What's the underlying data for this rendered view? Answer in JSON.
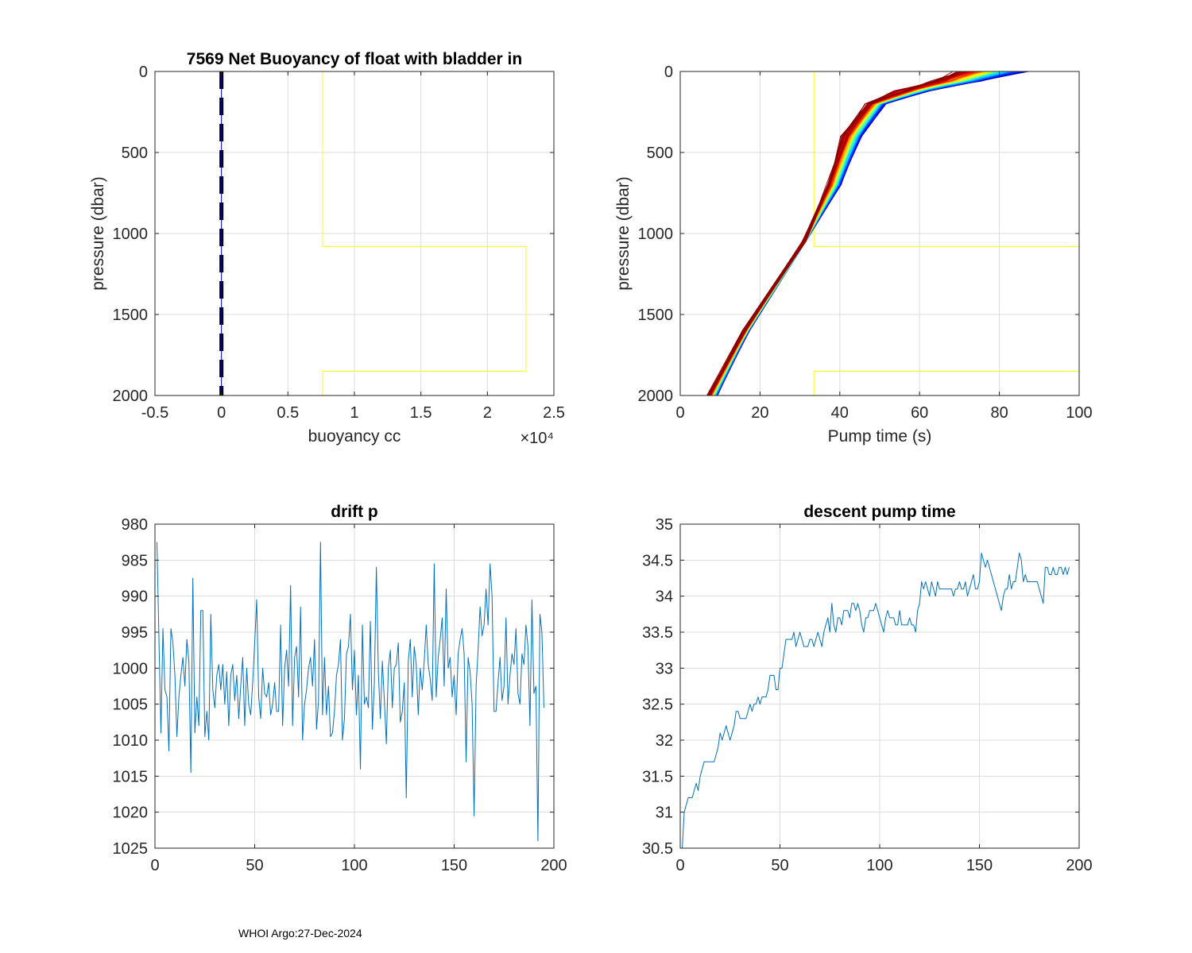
{
  "footer": "WHOI Argo:27-Dec-2024",
  "colors": {
    "grid": "#dcdcdc",
    "axis": "#262626",
    "series_blue": "#0072BD",
    "yellow": "#FFFF00",
    "black": "#000000",
    "navy": "#0000B4"
  },
  "chart_data": [
    {
      "id": "buoyancy",
      "type": "line",
      "title": "7569 Net Buoyancy of float with bladder in",
      "xlabel": "buoyancy cc",
      "ylabel": "pressure (dbar)",
      "xlim": [
        -5000,
        25000
      ],
      "ylim": [
        0,
        2000
      ],
      "y_reversed": true,
      "xticks": [
        -5000,
        0,
        5000,
        10000,
        15000,
        20000,
        25000
      ],
      "xtick_labels": [
        "-0.5",
        "0",
        "0.5",
        "1",
        "1.5",
        "2",
        "2.5"
      ],
      "yticks": [
        0,
        500,
        1000,
        1500,
        2000
      ],
      "ytick_labels": [
        "0",
        "500",
        "1000",
        "1500",
        "2000"
      ],
      "exponent": "×10⁴",
      "series": [
        {
          "name": "zero line",
          "style": "black-dashed",
          "x": [
            0,
            0
          ],
          "y": [
            0,
            2000
          ]
        },
        {
          "name": "net buoyancy",
          "style": "navy",
          "x": [
            0,
            0
          ],
          "y": [
            0,
            2000
          ]
        },
        {
          "name": "mask outline",
          "style": "yellow",
          "x": [
            7600,
            7600,
            22900,
            22900,
            7600,
            7600
          ],
          "y": [
            0,
            1080,
            1080,
            1850,
            1850,
            2000
          ]
        }
      ]
    },
    {
      "id": "pumptime",
      "type": "line",
      "title": "",
      "xlabel": "Pump time (s)",
      "ylabel": "pressure (dbar)",
      "xlim": [
        0,
        100
      ],
      "ylim": [
        0,
        2000
      ],
      "y_reversed": true,
      "xticks": [
        0,
        20,
        40,
        60,
        80,
        100
      ],
      "xtick_labels": [
        "0",
        "20",
        "40",
        "60",
        "80",
        "100"
      ],
      "yticks": [
        0,
        500,
        1000,
        1500,
        2000
      ],
      "ytick_labels": [
        "0",
        "500",
        "1000",
        "1500",
        "2000"
      ],
      "profile_count": 195,
      "colormap": "jet",
      "profile_anchor": {
        "pressure": [
          2000,
          1600,
          1050,
          700,
          400,
          200,
          120,
          60,
          0
        ]
      },
      "profile_first": {
        "pump_time": [
          9,
          17,
          31,
          40,
          45,
          51,
          61,
          74,
          86
        ]
      },
      "profile_last": {
        "pump_time": [
          7,
          16,
          31,
          37,
          41,
          47,
          55,
          64,
          70
        ]
      },
      "series": [
        {
          "name": "mask outline",
          "style": "yellow",
          "x": [
            33.5,
            33.5,
            100,
            100,
            33.5,
            33.5
          ],
          "y": [
            0,
            1080,
            1080,
            1850,
            1850,
            2000
          ]
        }
      ]
    },
    {
      "id": "driftp",
      "type": "line",
      "title": "drift p",
      "xlabel": "",
      "ylabel": "",
      "xlim": [
        0,
        200
      ],
      "ylim": [
        980,
        1025
      ],
      "y_reversed": true,
      "xticks": [
        0,
        50,
        100,
        150,
        200
      ],
      "xtick_labels": [
        "0",
        "50",
        "100",
        "150",
        "200"
      ],
      "yticks": [
        980,
        985,
        990,
        995,
        1000,
        1005,
        1010,
        1015,
        1020,
        1025
      ],
      "ytick_labels": [
        "980",
        "985",
        "990",
        "995",
        "1000",
        "1005",
        "1010",
        "1015",
        "1020",
        "1025"
      ],
      "x": [
        1,
        2,
        3,
        4,
        5,
        6,
        7,
        8,
        9,
        10,
        11,
        12,
        13,
        14,
        15,
        16,
        17,
        18,
        19,
        20,
        21,
        22,
        23,
        24,
        25,
        26,
        27,
        28,
        29,
        30,
        31,
        32,
        33,
        34,
        35,
        36,
        37,
        38,
        39,
        40,
        41,
        42,
        43,
        44,
        45,
        46,
        47,
        48,
        49,
        50,
        51,
        52,
        53,
        54,
        55,
        56,
        57,
        58,
        59,
        60,
        61,
        62,
        63,
        64,
        65,
        66,
        67,
        68,
        69,
        70,
        71,
        72,
        73,
        74,
        75,
        76,
        77,
        78,
        79,
        80,
        81,
        82,
        83,
        84,
        85,
        86,
        87,
        88,
        89,
        90,
        91,
        92,
        93,
        94,
        95,
        96,
        97,
        98,
        99,
        100,
        101,
        102,
        103,
        104,
        105,
        106,
        107,
        108,
        109,
        110,
        111,
        112,
        113,
        114,
        115,
        116,
        117,
        118,
        119,
        120,
        121,
        122,
        123,
        124,
        125,
        126,
        127,
        128,
        129,
        130,
        131,
        132,
        133,
        134,
        135,
        136,
        137,
        138,
        139,
        140,
        141,
        142,
        143,
        144,
        145,
        146,
        147,
        148,
        149,
        150,
        151,
        152,
        153,
        154,
        155,
        156,
        157,
        158,
        159,
        160,
        161,
        162,
        163,
        164,
        165,
        166,
        167,
        168,
        169,
        170,
        171,
        172,
        173,
        174,
        175,
        176,
        177,
        178,
        179,
        180,
        181,
        182,
        183,
        184,
        185,
        186,
        187,
        188,
        189,
        190,
        191,
        192,
        193,
        194,
        195
      ],
      "y": [
        982.5,
        996.0,
        1009.0,
        994.5,
        1003.0,
        1004.0,
        1011.5,
        994.5,
        996.5,
        1001.0,
        1009.5,
        1004.0,
        1001.0,
        998.5,
        1002.5,
        996.0,
        999.0,
        1014.5,
        987.5,
        1009.0,
        1004.0,
        1008.0,
        992.0,
        992.0,
        1009.5,
        1006.0,
        1010.0,
        992.5,
        1003.0,
        1005.5,
        1001.0,
        999.5,
        1003.0,
        999.5,
        1005.0,
        1000.5,
        1008.0,
        1001.0,
        999.5,
        1004.5,
        1001.0,
        1007.0,
        1002.5,
        998.5,
        1008.0,
        1000.0,
        1005.0,
        1006.5,
        1002.0,
        996.5,
        990.5,
        1004.0,
        1007.0,
        1000.0,
        1003.5,
        1004.0,
        1002.0,
        1006.5,
        1005.0,
        1002.0,
        1006.0,
        1006.0,
        994.0,
        1008.0,
        1000.0,
        997.5,
        1002.5,
        988.5,
        1008.0,
        998.5,
        997.0,
        1004.0,
        991.5,
        1010.0,
        1005.0,
        1003.0,
        1000.0,
        998.5,
        1002.5,
        996.0,
        1008.5,
        1004.5,
        982.5,
        1006.5,
        998.5,
        1006.5,
        1002.5,
        1009.5,
        1009.0,
        1006.0,
        1001.0,
        999.5,
        996.0,
        1010.0,
        1007.0,
        998.0,
        997.0,
        992.5,
        1003.0,
        997.5,
        1006.5,
        1001.0,
        1014.0,
        994.0,
        1005.0,
        1004.0,
        1005.5,
        993.5,
        1008.5,
        1002.0,
        986.0,
        1000.5,
        1007.0,
        999.0,
        1004.5,
        1010.5,
        1000.0,
        997.5,
        1005.5,
        1000.0,
        999.5,
        996.5,
        1007.5,
        1006.0,
        1002.0,
        1018.0,
        999.0,
        996.0,
        1004.0,
        997.0,
        999.5,
        1006.5,
        1000.0,
        1003.0,
        999.0,
        994.0,
        999.5,
        1001.5,
        1004.5,
        985.5,
        1004.0,
        998.5,
        996.0,
        993.0,
        1002.5,
        989.0,
        1000.0,
        998.5,
        1004.0,
        1001.0,
        1006.5,
        998.0,
        996.0,
        994.5,
        998.0,
        1013.0,
        998.5,
        1000.5,
        1005.0,
        1020.5,
        1002.5,
        997.5,
        991.5,
        995.5,
        994.0,
        989.0,
        994.0,
        985.5,
        990.0,
        1006.0,
        1006.0,
        1002.0,
        998.5,
        1004.5,
        1002.5,
        993.0,
        1005.0,
        1001.0,
        998.0,
        999.5,
        994.5,
        1003.5,
        1005.0,
        998.0,
        999.5,
        994.0,
        997.0,
        1008.0,
        990.5,
        1003.5,
        1002.5,
        1024.0,
        992.5,
        995.0,
        1005.5
      ]
    },
    {
      "id": "descentpump",
      "type": "line",
      "title": "descent pump time",
      "xlabel": "",
      "ylabel": "",
      "xlim": [
        0,
        200
      ],
      "ylim": [
        30.5,
        35
      ],
      "y_reversed": false,
      "xticks": [
        0,
        50,
        100,
        150,
        200
      ],
      "xtick_labels": [
        "0",
        "50",
        "100",
        "150",
        "200"
      ],
      "yticks": [
        30.5,
        31,
        31.5,
        32,
        32.5,
        33,
        33.5,
        34,
        34.5,
        35
      ],
      "ytick_labels": [
        "30.5",
        "31",
        "31.5",
        "32",
        "32.5",
        "33",
        "33.5",
        "34",
        "34.5",
        "35"
      ],
      "x": [
        1,
        2,
        3,
        4,
        5,
        6,
        7,
        8,
        9,
        10,
        11,
        12,
        13,
        14,
        15,
        16,
        17,
        18,
        19,
        20,
        21,
        22,
        23,
        24,
        25,
        26,
        27,
        28,
        29,
        30,
        31,
        32,
        33,
        34,
        35,
        36,
        37,
        38,
        39,
        40,
        41,
        42,
        43,
        44,
        45,
        46,
        47,
        48,
        49,
        50,
        51,
        52,
        53,
        54,
        55,
        56,
        57,
        58,
        59,
        60,
        61,
        62,
        63,
        64,
        65,
        66,
        67,
        68,
        69,
        70,
        71,
        72,
        73,
        74,
        75,
        76,
        77,
        78,
        79,
        80,
        81,
        82,
        83,
        84,
        85,
        86,
        87,
        88,
        89,
        90,
        91,
        92,
        93,
        94,
        95,
        96,
        97,
        98,
        99,
        100,
        101,
        102,
        103,
        104,
        105,
        106,
        107,
        108,
        109,
        110,
        111,
        112,
        113,
        114,
        115,
        116,
        117,
        118,
        119,
        120,
        121,
        122,
        123,
        124,
        125,
        126,
        127,
        128,
        129,
        130,
        131,
        132,
        133,
        134,
        135,
        136,
        137,
        138,
        139,
        140,
        141,
        142,
        143,
        144,
        145,
        146,
        147,
        148,
        149,
        150,
        151,
        152,
        153,
        154,
        155,
        156,
        157,
        158,
        159,
        160,
        161,
        162,
        163,
        164,
        165,
        166,
        167,
        168,
        169,
        170,
        171,
        172,
        173,
        174,
        175,
        176,
        177,
        178,
        179,
        180,
        181,
        182,
        183,
        184,
        185,
        186,
        187,
        188,
        189,
        190,
        191,
        192,
        193,
        194,
        195
      ],
      "y": [
        30.5,
        31.0,
        31.1,
        31.2,
        31.2,
        31.2,
        31.3,
        31.4,
        31.3,
        31.5,
        31.6,
        31.7,
        31.7,
        31.7,
        31.7,
        31.7,
        31.7,
        31.8,
        31.9,
        32.1,
        32.0,
        32.1,
        32.2,
        32.1,
        32.0,
        32.1,
        32.2,
        32.4,
        32.4,
        32.3,
        32.3,
        32.3,
        32.3,
        32.4,
        32.5,
        32.4,
        32.5,
        32.5,
        32.6,
        32.5,
        32.6,
        32.6,
        32.6,
        32.7,
        32.9,
        32.9,
        32.9,
        32.7,
        32.7,
        33.0,
        33.0,
        33.2,
        33.4,
        33.4,
        33.4,
        33.4,
        33.5,
        33.3,
        33.4,
        33.5,
        33.4,
        33.3,
        33.3,
        33.3,
        33.4,
        33.4,
        33.3,
        33.4,
        33.5,
        33.4,
        33.3,
        33.5,
        33.6,
        33.7,
        33.5,
        33.9,
        33.6,
        33.5,
        33.7,
        33.7,
        33.6,
        33.8,
        33.8,
        33.8,
        33.7,
        33.9,
        33.9,
        33.8,
        33.9,
        33.8,
        33.6,
        33.5,
        33.7,
        33.7,
        33.8,
        33.8,
        33.8,
        33.9,
        33.8,
        33.7,
        33.6,
        33.5,
        33.7,
        33.8,
        33.7,
        33.7,
        33.7,
        33.6,
        33.6,
        33.8,
        33.6,
        33.6,
        33.6,
        33.6,
        33.7,
        33.6,
        33.6,
        33.5,
        33.8,
        33.9,
        34.2,
        34.1,
        34.2,
        34.1,
        34.0,
        34.2,
        34.1,
        34.0,
        34.2,
        34.1,
        34.1,
        34.1,
        34.1,
        34.1,
        34.1,
        34.1,
        34.0,
        34.1,
        34.1,
        34.2,
        34.1,
        34.1,
        34.2,
        34.0,
        34.1,
        34.2,
        34.3,
        34.1,
        34.1,
        34.2,
        34.6,
        34.5,
        34.4,
        34.5,
        34.4,
        34.3,
        34.2,
        34.1,
        34.0,
        33.9,
        33.8,
        34.0,
        34.1,
        34.1,
        34.3,
        34.1,
        34.2,
        34.2,
        34.4,
        34.6,
        34.5,
        34.2,
        34.3,
        34.2,
        34.2,
        34.2,
        34.2,
        34.2,
        34.2,
        34.1,
        34.0,
        33.9,
        34.4,
        34.4,
        34.3,
        34.3,
        34.4,
        34.3,
        34.3,
        34.4,
        34.4,
        34.3,
        34.4,
        34.3,
        34.4
      ]
    }
  ]
}
